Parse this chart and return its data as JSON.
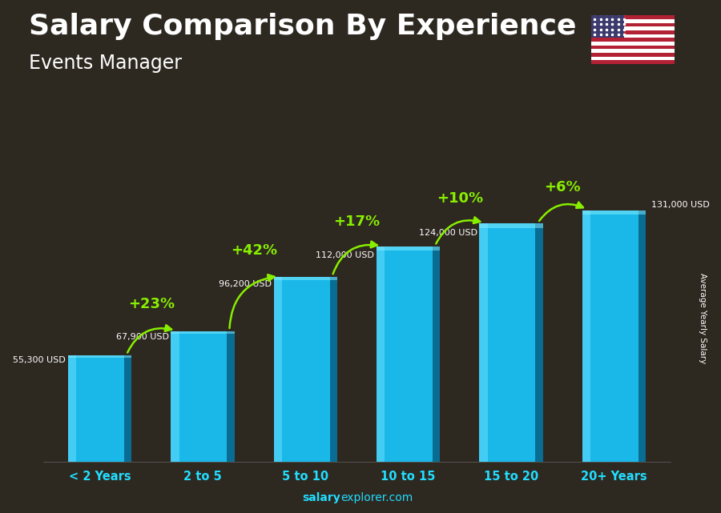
{
  "title": "Salary Comparison By Experience",
  "subtitle": "Events Manager",
  "categories": [
    "< 2 Years",
    "2 to 5",
    "5 to 10",
    "10 to 15",
    "15 to 20",
    "20+ Years"
  ],
  "values": [
    55300,
    67900,
    96200,
    112000,
    124000,
    131000
  ],
  "value_labels": [
    "55,300 USD",
    "67,900 USD",
    "96,200 USD",
    "112,000 USD",
    "124,000 USD",
    "131,000 USD"
  ],
  "pct_labels": [
    "+23%",
    "+42%",
    "+17%",
    "+10%",
    "+6%"
  ],
  "bar_color_main": "#1ab8e8",
  "bar_color_light": "#5dd6f5",
  "bar_color_dark": "#0077aa",
  "bar_color_darker": "#005580",
  "bg_color": "#3a3530",
  "text_color_white": "#ffffff",
  "text_color_green": "#88ee00",
  "xlabel_color": "#22ddff",
  "ylabel_text": "Average Yearly Salary",
  "source_bold": "salary",
  "source_normal": "explorer.com",
  "ylim": [
    0,
    155000
  ],
  "title_fontsize": 26,
  "subtitle_fontsize": 17,
  "figsize": [
    9.0,
    6.41
  ]
}
